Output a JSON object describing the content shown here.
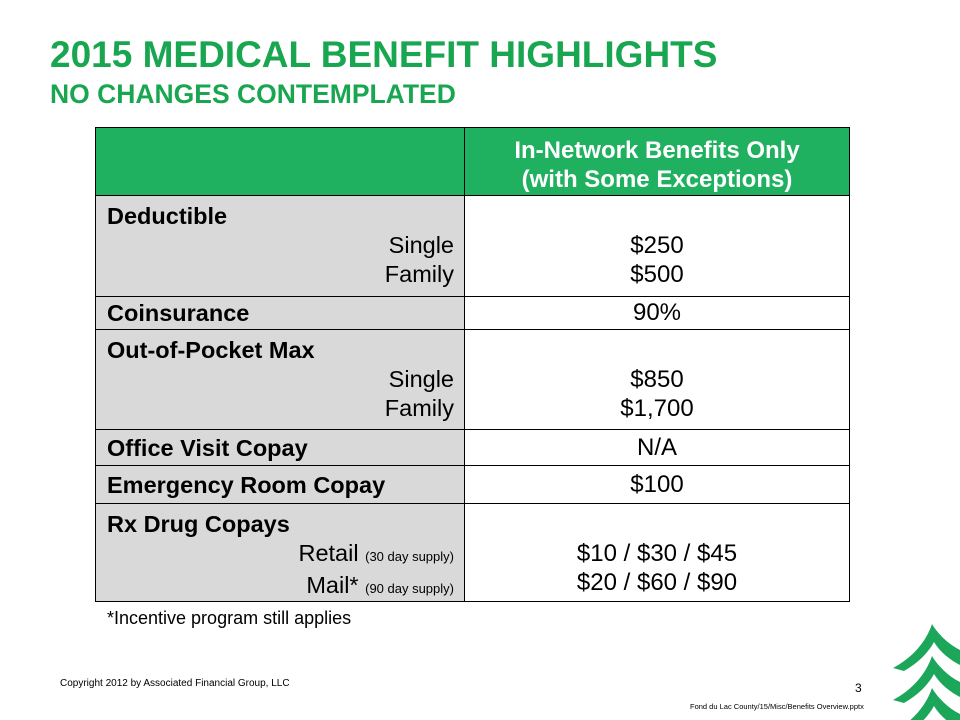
{
  "slide": {
    "title": "2015 MEDICAL BENEFIT HIGHLIGHTS",
    "subtitle": "NO CHANGES CONTEMPLATED",
    "footnote": "*Incentive program still applies",
    "copyright": "Copyright 2012 by Associated Financial Group, LLC",
    "page_number": "3",
    "file_path": "Fond du Lac County/15/Misc/Benefits Overview.pptx",
    "logo_icon": "associated-tree-logo-icon"
  },
  "colors": {
    "title_green": "#19a650",
    "header_green": "#1fb15f",
    "label_fill": "#d9d9d9",
    "value_fill": "#ffffff",
    "border": "#000000",
    "logo_green": "#1ca65a"
  },
  "table": {
    "header": {
      "right": [
        "In-Network Benefits Only",
        "(with Some Exceptions)"
      ]
    },
    "rows": [
      {
        "label": "Deductible",
        "sublines": [
          {
            "label": "Single",
            "value": "$250"
          },
          {
            "label": "Family",
            "value": "$500"
          }
        ]
      },
      {
        "label": "Coinsurance",
        "value": "90%"
      },
      {
        "label": "Out-of-Pocket Max",
        "sublines": [
          {
            "label": "Single",
            "value": "$850"
          },
          {
            "label": "Family",
            "value": "$1,700"
          }
        ]
      },
      {
        "label": "Office Visit Copay",
        "value": "N/A"
      },
      {
        "label": "Emergency Room Copay",
        "value": "$100"
      },
      {
        "label": "Rx Drug Copays",
        "sublines": [
          {
            "label": "Retail",
            "note": "(30 day supply)",
            "value": "$10 / $30 / $45"
          },
          {
            "label": "Mail*",
            "note": "(90 day supply)",
            "value": "$20 / $60 / $90"
          }
        ]
      }
    ]
  }
}
